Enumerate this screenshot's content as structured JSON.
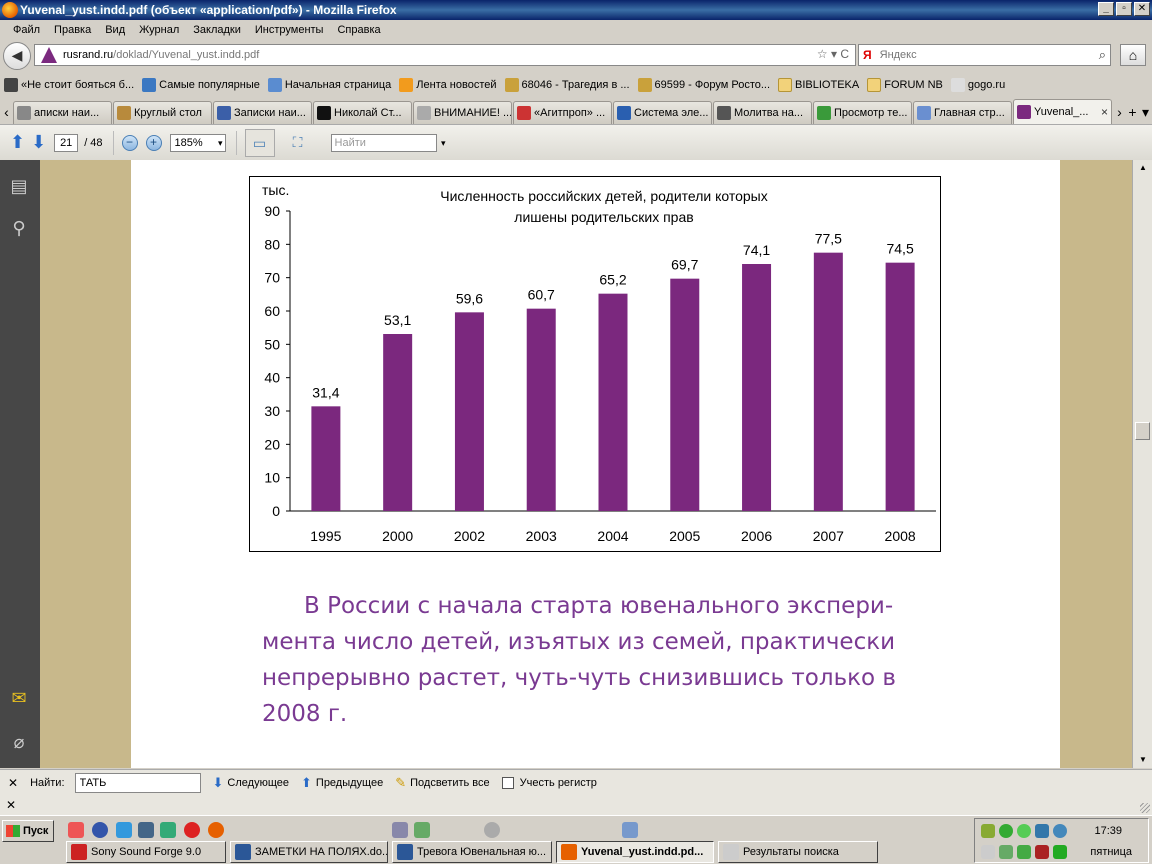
{
  "window": {
    "title": "Yuvenal_yust.indd.pdf (объект «application/pdf») - Mozilla Firefox",
    "buttons": [
      "_",
      "▫",
      "✕"
    ]
  },
  "menu": [
    "Файл",
    "Правка",
    "Вид",
    "Журнал",
    "Закладки",
    "Инструменты",
    "Справка"
  ],
  "navbar": {
    "url_host": "rusrand.ru",
    "url_path": "/doklad/Yuvenal_yust.indd.pdf",
    "search_placeholder": "Яндекс",
    "search_engine_label": "Я",
    "url_icons": "☆ ▾ C"
  },
  "bookmarks": [
    {
      "label": "«Не стоит бояться б...",
      "icon": "gear-icon",
      "color": "#444"
    },
    {
      "label": "Самые популярные",
      "icon": "search-icon",
      "color": "#3b78c2"
    },
    {
      "label": "Начальная страница",
      "icon": "mail-icon",
      "color": "#5a8cd0"
    },
    {
      "label": "Лента новостей",
      "icon": "rss-icon",
      "color": "#f29b1d"
    },
    {
      "label": "68046 - Трагедия в ...",
      "icon": "emblem-icon",
      "color": "#c9a13b"
    },
    {
      "label": "69599 - Форум Росто...",
      "icon": "emblem-icon",
      "color": "#c9a13b"
    },
    {
      "label": "BIBLIOTEKA",
      "icon": "folder-icon",
      "color": "folder"
    },
    {
      "label": "FORUM NB",
      "icon": "folder-icon",
      "color": "folder"
    },
    {
      "label": "gogo.ru",
      "icon": "page-icon",
      "color": "#ddd"
    }
  ],
  "tabs": [
    {
      "label": "аписки наи...",
      "color": "#888",
      "active": false
    },
    {
      "label": "Круглый стол",
      "color": "#b88a3c",
      "active": false
    },
    {
      "label": "Записки наи...",
      "color": "#3b5fa8",
      "active": false
    },
    {
      "label": "Николай Ст...",
      "color": "#111",
      "active": false
    },
    {
      "label": "ВНИМАНИЕ! ...",
      "color": "#aaa",
      "active": false
    },
    {
      "label": "«Агитпроп» ...",
      "color": "#c33",
      "active": false
    },
    {
      "label": "Система эле...",
      "color": "#2a5fb0",
      "active": false
    },
    {
      "label": "Молитва на...",
      "color": "#555",
      "active": false
    },
    {
      "label": "Просмотр те...",
      "color": "#3a9a3a",
      "active": false
    },
    {
      "label": "Главная стр...",
      "color": "#6a8fd0",
      "active": false
    },
    {
      "label": "Yuvenal_...",
      "color": "#7b2a7f",
      "active": true
    }
  ],
  "tab_close": "×",
  "tab_new": "+",
  "pdf_toolbar": {
    "page_current": "21",
    "page_total": "/ 48",
    "zoom": "185%",
    "find_placeholder": "Найти"
  },
  "chart_data": {
    "type": "bar",
    "title": "Численность российских детей, родители которых лишены родительских прав",
    "title_lines": [
      "Численность российских детей, родители которых",
      "лишены родительских прав"
    ],
    "ylabel": "тыс.",
    "xlabel": "",
    "categories": [
      "1995",
      "2000",
      "2002",
      "2003",
      "2004",
      "2005",
      "2006",
      "2007",
      "2008"
    ],
    "values": [
      31.4,
      53.1,
      59.6,
      60.7,
      65.2,
      69.7,
      74.1,
      77.5,
      74.5
    ],
    "value_labels": [
      "31,4",
      "53,1",
      "59,6",
      "60,7",
      "65,2",
      "69,7",
      "74,1",
      "77,5",
      "74,5"
    ],
    "ylim": [
      0,
      90
    ],
    "yticks": [
      0,
      10,
      20,
      30,
      40,
      50,
      60,
      70,
      80,
      90
    ],
    "grid": false,
    "bar_color": "#7b287e"
  },
  "document_text": "В России с начала старта ювенального экспери-мента число детей, изъятых из семей, практически непрерывно растет, чуть-чуть снизившись только в 2008 г.",
  "findbar": {
    "label": "Найти:",
    "value": "ТАТЬ",
    "next": "Следующее",
    "prev": "Предыдущее",
    "highlight": "Подсветить все",
    "match_case": "Учесть регистр"
  },
  "status": "",
  "taskbar": {
    "start": "Пуск",
    "windows": [
      {
        "label": "Sony Sound Forge 9.0",
        "color": "#c22",
        "active": false
      },
      {
        "label": "ЗАМЕТКИ НА ПОЛЯХ.do...",
        "color": "#2b5797",
        "active": false
      },
      {
        "label": "Тревога Ювенальная ю...",
        "color": "#2b5797",
        "active": false
      },
      {
        "label": "Yuvenal_yust.indd.pd...",
        "color": "#e66000",
        "active": true
      },
      {
        "label": "Результаты поиска",
        "color": "#ccc",
        "active": false
      }
    ],
    "clock": "17:39",
    "day": "пятница"
  }
}
